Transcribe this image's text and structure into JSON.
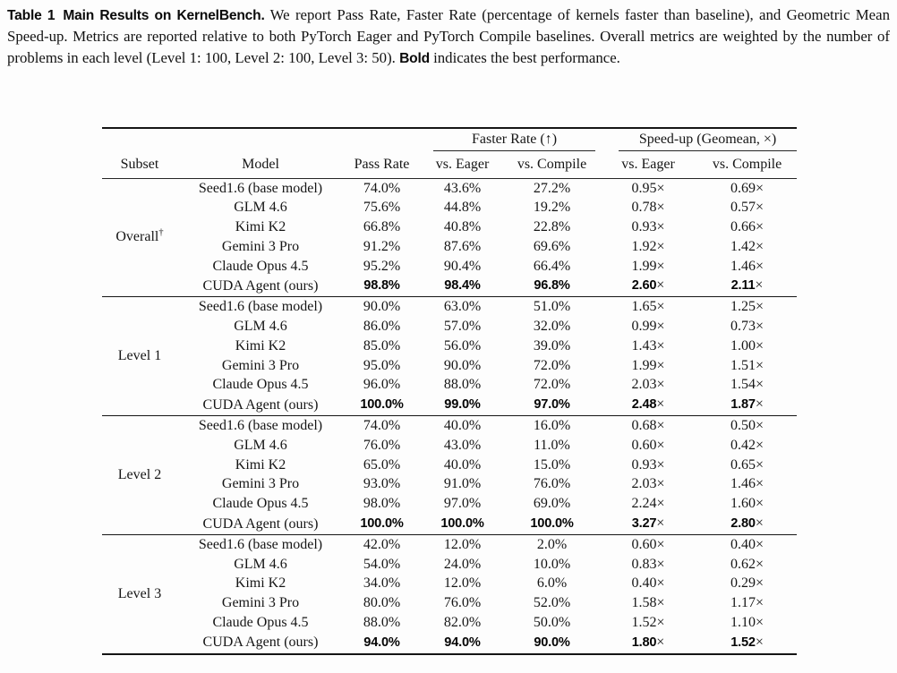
{
  "caption": {
    "label": "Table 1",
    "title": "Main Results on KernelBench.",
    "body": "We report Pass Rate, Faster Rate (percentage of kernels faster than baseline), and Geometric Mean Speed-up. Metrics are reported relative to both PyTorch Eager and PyTorch Compile baselines. Overall metrics are weighted by the number of problems in each level (Level 1: 100, Level 2: 100, Level 3: 50).",
    "bold_word": "Bold",
    "tail": "indicates the best performance."
  },
  "table": {
    "group_headers": {
      "faster_rate": "Faster Rate (↑)",
      "speedup": "Speed-up (Geomean, ×)"
    },
    "column_headers": {
      "subset": "Subset",
      "model": "Model",
      "pass_rate": "Pass Rate",
      "vs_eager": "vs. Eager",
      "vs_compile": "vs. Compile"
    },
    "times_sign": "×",
    "groups": [
      {
        "subset": "Overall",
        "subset_sup": "†",
        "rows": [
          {
            "model": "Seed1.6 (base model)",
            "pass_rate": "74.0%",
            "faster_eager": "43.6%",
            "faster_compile": "27.2%",
            "speedup_eager": "0.95",
            "speedup_compile": "0.69",
            "bold": false
          },
          {
            "model": "GLM 4.6",
            "pass_rate": "75.6%",
            "faster_eager": "44.8%",
            "faster_compile": "19.2%",
            "speedup_eager": "0.78",
            "speedup_compile": "0.57",
            "bold": false
          },
          {
            "model": "Kimi K2",
            "pass_rate": "66.8%",
            "faster_eager": "40.8%",
            "faster_compile": "22.8%",
            "speedup_eager": "0.93",
            "speedup_compile": "0.66",
            "bold": false
          },
          {
            "model": "Gemini 3 Pro",
            "pass_rate": "91.2%",
            "faster_eager": "87.6%",
            "faster_compile": "69.6%",
            "speedup_eager": "1.92",
            "speedup_compile": "1.42",
            "bold": false
          },
          {
            "model": "Claude Opus 4.5",
            "pass_rate": "95.2%",
            "faster_eager": "90.4%",
            "faster_compile": "66.4%",
            "speedup_eager": "1.99",
            "speedup_compile": "1.46",
            "bold": false
          },
          {
            "model": "CUDA Agent (ours)",
            "pass_rate": "98.8%",
            "faster_eager": "98.4%",
            "faster_compile": "96.8%",
            "speedup_eager": "2.60",
            "speedup_compile": "2.11",
            "bold": true
          }
        ]
      },
      {
        "subset": "Level 1",
        "subset_sup": "",
        "rows": [
          {
            "model": "Seed1.6 (base model)",
            "pass_rate": "90.0%",
            "faster_eager": "63.0%",
            "faster_compile": "51.0%",
            "speedup_eager": "1.65",
            "speedup_compile": "1.25",
            "bold": false
          },
          {
            "model": "GLM 4.6",
            "pass_rate": "86.0%",
            "faster_eager": "57.0%",
            "faster_compile": "32.0%",
            "speedup_eager": "0.99",
            "speedup_compile": "0.73",
            "bold": false
          },
          {
            "model": "Kimi K2",
            "pass_rate": "85.0%",
            "faster_eager": "56.0%",
            "faster_compile": "39.0%",
            "speedup_eager": "1.43",
            "speedup_compile": "1.00",
            "bold": false
          },
          {
            "model": "Gemini 3 Pro",
            "pass_rate": "95.0%",
            "faster_eager": "90.0%",
            "faster_compile": "72.0%",
            "speedup_eager": "1.99",
            "speedup_compile": "1.51",
            "bold": false
          },
          {
            "model": "Claude Opus 4.5",
            "pass_rate": "96.0%",
            "faster_eager": "88.0%",
            "faster_compile": "72.0%",
            "speedup_eager": "2.03",
            "speedup_compile": "1.54",
            "bold": false
          },
          {
            "model": "CUDA Agent (ours)",
            "pass_rate": "100.0%",
            "faster_eager": "99.0%",
            "faster_compile": "97.0%",
            "speedup_eager": "2.48",
            "speedup_compile": "1.87",
            "bold": true
          }
        ]
      },
      {
        "subset": "Level 2",
        "subset_sup": "",
        "rows": [
          {
            "model": "Seed1.6 (base model)",
            "pass_rate": "74.0%",
            "faster_eager": "40.0%",
            "faster_compile": "16.0%",
            "speedup_eager": "0.68",
            "speedup_compile": "0.50",
            "bold": false
          },
          {
            "model": "GLM 4.6",
            "pass_rate": "76.0%",
            "faster_eager": "43.0%",
            "faster_compile": "11.0%",
            "speedup_eager": "0.60",
            "speedup_compile": "0.42",
            "bold": false
          },
          {
            "model": "Kimi K2",
            "pass_rate": "65.0%",
            "faster_eager": "40.0%",
            "faster_compile": "15.0%",
            "speedup_eager": "0.93",
            "speedup_compile": "0.65",
            "bold": false
          },
          {
            "model": "Gemini 3 Pro",
            "pass_rate": "93.0%",
            "faster_eager": "91.0%",
            "faster_compile": "76.0%",
            "speedup_eager": "2.03",
            "speedup_compile": "1.46",
            "bold": false
          },
          {
            "model": "Claude Opus 4.5",
            "pass_rate": "98.0%",
            "faster_eager": "97.0%",
            "faster_compile": "69.0%",
            "speedup_eager": "2.24",
            "speedup_compile": "1.60",
            "bold": false
          },
          {
            "model": "CUDA Agent (ours)",
            "pass_rate": "100.0%",
            "faster_eager": "100.0%",
            "faster_compile": "100.0%",
            "speedup_eager": "3.27",
            "speedup_compile": "2.80",
            "bold": true
          }
        ]
      },
      {
        "subset": "Level 3",
        "subset_sup": "",
        "rows": [
          {
            "model": "Seed1.6 (base model)",
            "pass_rate": "42.0%",
            "faster_eager": "12.0%",
            "faster_compile": "2.0%",
            "speedup_eager": "0.60",
            "speedup_compile": "0.40",
            "bold": false
          },
          {
            "model": "GLM 4.6",
            "pass_rate": "54.0%",
            "faster_eager": "24.0%",
            "faster_compile": "10.0%",
            "speedup_eager": "0.83",
            "speedup_compile": "0.62",
            "bold": false
          },
          {
            "model": "Kimi K2",
            "pass_rate": "34.0%",
            "faster_eager": "12.0%",
            "faster_compile": "6.0%",
            "speedup_eager": "0.40",
            "speedup_compile": "0.29",
            "bold": false
          },
          {
            "model": "Gemini 3 Pro",
            "pass_rate": "80.0%",
            "faster_eager": "76.0%",
            "faster_compile": "52.0%",
            "speedup_eager": "1.58",
            "speedup_compile": "1.17",
            "bold": false
          },
          {
            "model": "Claude Opus 4.5",
            "pass_rate": "88.0%",
            "faster_eager": "82.0%",
            "faster_compile": "50.0%",
            "speedup_eager": "1.52",
            "speedup_compile": "1.10",
            "bold": false
          },
          {
            "model": "CUDA Agent (ours)",
            "pass_rate": "94.0%",
            "faster_eager": "94.0%",
            "faster_compile": "90.0%",
            "speedup_eager": "1.80",
            "speedup_compile": "1.52",
            "bold": true
          }
        ]
      }
    ]
  }
}
